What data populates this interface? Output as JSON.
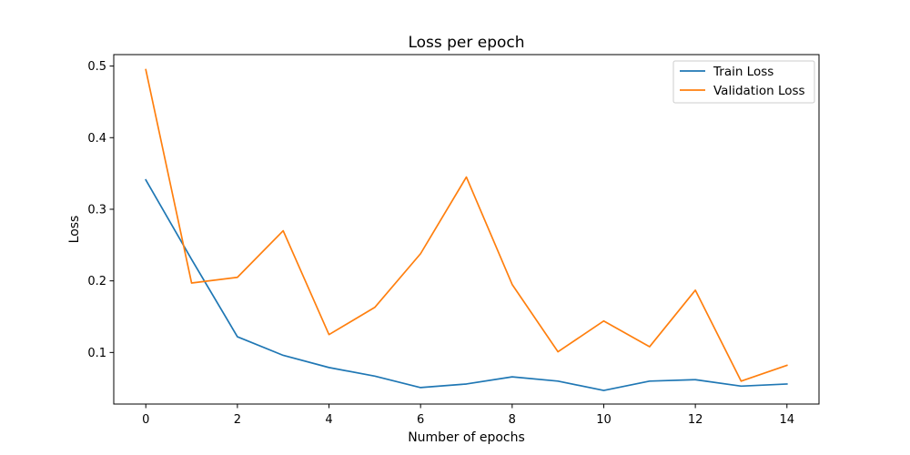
{
  "chart_data": {
    "type": "line",
    "title": "Loss per epoch",
    "xlabel": "Number of epochs",
    "ylabel": "Loss",
    "x": [
      0,
      1,
      2,
      3,
      4,
      5,
      6,
      7,
      8,
      9,
      10,
      11,
      12,
      13,
      14
    ],
    "xlim": [
      -0.7,
      14.7
    ],
    "ylim": [
      0.028,
      0.516
    ],
    "xticks": [
      0,
      2,
      4,
      6,
      8,
      10,
      12,
      14
    ],
    "yticks": [
      0.1,
      0.2,
      0.3,
      0.4,
      0.5
    ],
    "xtick_labels": [
      "0",
      "2",
      "4",
      "6",
      "8",
      "10",
      "12",
      "14"
    ],
    "ytick_labels": [
      "0.1",
      "0.2",
      "0.3",
      "0.4",
      "0.5"
    ],
    "grid": false,
    "legend_position": "top-right",
    "series": [
      {
        "name": "Train Loss",
        "color": "#1f77b4",
        "values": [
          0.341,
          0.23,
          0.122,
          0.096,
          0.079,
          0.067,
          0.051,
          0.056,
          0.066,
          0.06,
          0.047,
          0.06,
          0.062,
          0.053,
          0.056
        ]
      },
      {
        "name": "Validation Loss",
        "color": "#ff7f0e",
        "values": [
          0.495,
          0.197,
          0.205,
          0.27,
          0.125,
          0.163,
          0.238,
          0.345,
          0.195,
          0.101,
          0.144,
          0.108,
          0.187,
          0.06,
          0.082
        ]
      }
    ]
  }
}
